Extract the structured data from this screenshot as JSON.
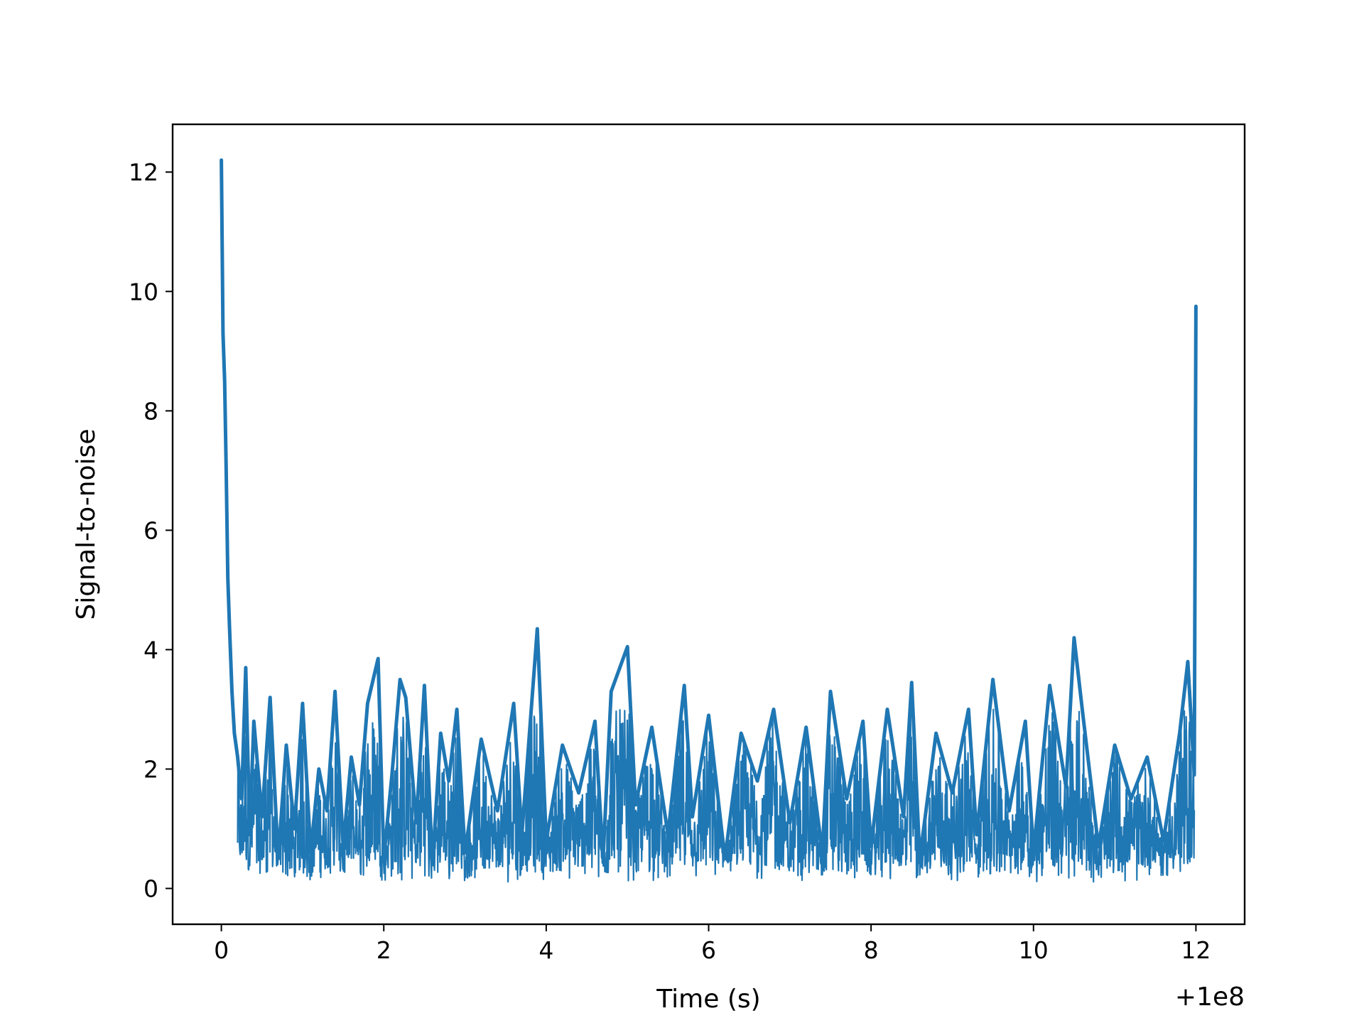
{
  "chart_data": {
    "type": "line",
    "title": "",
    "xlabel": "Time (s)",
    "ylabel": "Signal-to-noise",
    "x_offset_label": "+1e8",
    "xlim": [
      -0.6,
      12.6
    ],
    "ylim": [
      -0.6,
      12.8
    ],
    "xticks": [
      0,
      2,
      4,
      6,
      8,
      10,
      12
    ],
    "yticks": [
      0,
      2,
      4,
      6,
      8,
      10,
      12
    ],
    "grid": false,
    "legend": "none",
    "colors": {
      "line": "#1f77b4",
      "axes": "#000000",
      "background": "#ffffff"
    },
    "series": [
      {
        "x": [
          0.0,
          0.02,
          0.04,
          0.06,
          0.08,
          0.1,
          0.13,
          0.16,
          0.2,
          0.25,
          0.3,
          0.35,
          0.4,
          0.5,
          0.6,
          0.7,
          0.8,
          0.9,
          1.0,
          1.1,
          1.2,
          1.3,
          1.4,
          1.5,
          1.6,
          1.7,
          1.8,
          1.93,
          2.0,
          2.1,
          2.2,
          2.27,
          2.4,
          2.5,
          2.6,
          2.7,
          2.8,
          2.9,
          3.0,
          3.2,
          3.4,
          3.6,
          3.7,
          3.89,
          4.0,
          4.2,
          4.4,
          4.6,
          4.7,
          4.8,
          5.0,
          5.1,
          5.3,
          5.5,
          5.7,
          5.8,
          6.0,
          6.2,
          6.4,
          6.6,
          6.8,
          7.0,
          7.2,
          7.4,
          7.5,
          7.7,
          7.9,
          8.0,
          8.2,
          8.4,
          8.5,
          8.6,
          8.8,
          9.0,
          9.2,
          9.3,
          9.5,
          9.7,
          9.9,
          10.0,
          10.2,
          10.4,
          10.5,
          10.6,
          10.8,
          11.0,
          11.2,
          11.4,
          11.6,
          11.8,
          11.9,
          11.98,
          12.0
        ],
        "y": [
          12.2,
          9.3,
          8.5,
          7.0,
          5.2,
          4.4,
          3.3,
          2.6,
          2.2,
          1.5,
          3.7,
          0.9,
          2.8,
          1.2,
          3.2,
          0.5,
          2.4,
          1.0,
          3.1,
          0.6,
          2.0,
          1.3,
          3.3,
          0.7,
          2.2,
          1.4,
          3.1,
          3.85,
          0.5,
          1.9,
          3.5,
          3.2,
          1.1,
          3.4,
          0.4,
          2.6,
          1.8,
          3.0,
          0.6,
          2.5,
          1.3,
          3.1,
          0.9,
          4.35,
          0.8,
          2.4,
          1.6,
          2.8,
          0.5,
          3.3,
          4.05,
          1.4,
          2.7,
          0.9,
          3.4,
          1.2,
          2.9,
          0.5,
          2.6,
          1.8,
          3.0,
          1.1,
          2.7,
          0.6,
          3.3,
          1.5,
          2.8,
          0.7,
          3.0,
          1.2,
          3.45,
          0.5,
          2.6,
          1.6,
          3.0,
          0.9,
          3.5,
          1.3,
          2.8,
          0.6,
          3.4,
          1.7,
          4.2,
          3.0,
          0.7,
          2.4,
          1.5,
          2.2,
          0.8,
          2.6,
          3.8,
          1.9,
          9.75
        ]
      }
    ]
  }
}
